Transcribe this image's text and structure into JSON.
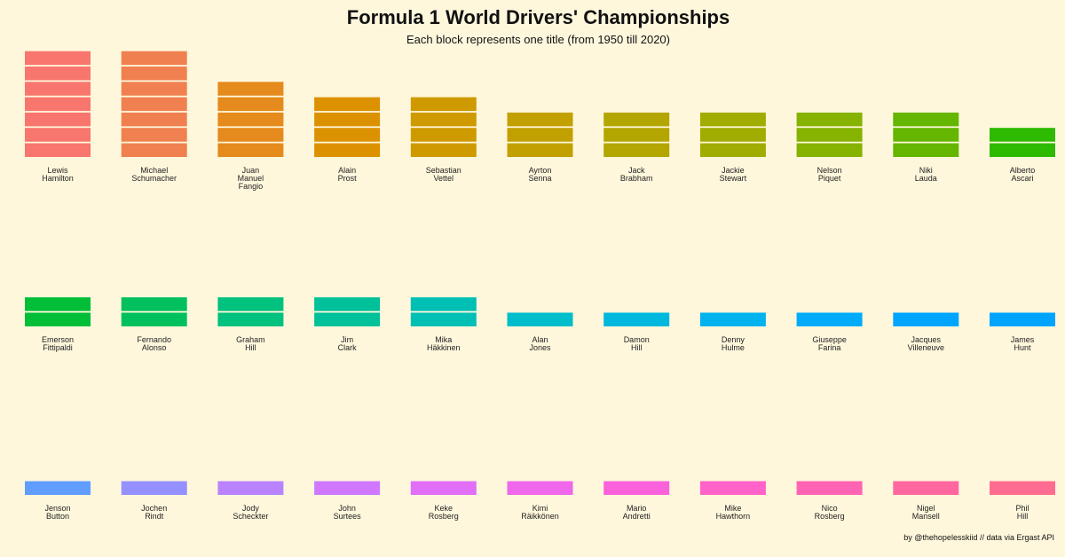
{
  "title": "Formula 1 World Drivers' Championships",
  "subtitle": "Each block represents one title (from 1950 till 2020)",
  "caption": "by @thehopelesskiid // data via Ergast API",
  "chart_data": {
    "type": "bar",
    "unit": "titles",
    "drivers": [
      {
        "name": [
          "Lewis",
          "Hamilton"
        ],
        "titles": 7,
        "color": "#f8766d"
      },
      {
        "name": [
          "Michael",
          "Schumacher"
        ],
        "titles": 7,
        "color": "#f08050"
      },
      {
        "name": [
          "Juan",
          "Manuel",
          "Fangio"
        ],
        "titles": 5,
        "color": "#e58a1c"
      },
      {
        "name": [
          "Alain",
          "Prost"
        ],
        "titles": 4,
        "color": "#dc9200"
      },
      {
        "name": [
          "Sebastian",
          "Vettel"
        ],
        "titles": 4,
        "color": "#cf9a00"
      },
      {
        "name": [
          "Ayrton",
          "Senna"
        ],
        "titles": 3,
        "color": "#c2a000"
      },
      {
        "name": [
          "Jack",
          "Brabham"
        ],
        "titles": 3,
        "color": "#b3a600"
      },
      {
        "name": [
          "Jackie",
          "Stewart"
        ],
        "titles": 3,
        "color": "#a0ac00"
      },
      {
        "name": [
          "Nelson",
          "Piquet"
        ],
        "titles": 3,
        "color": "#86b200"
      },
      {
        "name": [
          "Niki",
          "Lauda"
        ],
        "titles": 3,
        "color": "#64b600"
      },
      {
        "name": [
          "Alberto",
          "Ascari"
        ],
        "titles": 2,
        "color": "#2eba00"
      },
      {
        "name": [
          "Emerson",
          "Fittipaldi"
        ],
        "titles": 2,
        "color": "#00be38"
      },
      {
        "name": [
          "Fernando",
          "Alonso"
        ],
        "titles": 2,
        "color": "#00c05e"
      },
      {
        "name": [
          "Graham",
          "Hill"
        ],
        "titles": 2,
        "color": "#00c17d"
      },
      {
        "name": [
          "Jim",
          "Clark"
        ],
        "titles": 2,
        "color": "#00c19a"
      },
      {
        "name": [
          "Mika",
          "Häkkinen"
        ],
        "titles": 2,
        "color": "#00c0b5"
      },
      {
        "name": [
          "Alan",
          "Jones"
        ],
        "titles": 1,
        "color": "#00bdcc"
      },
      {
        "name": [
          "Damon",
          "Hill"
        ],
        "titles": 1,
        "color": "#00b8dd"
      },
      {
        "name": [
          "Denny",
          "Hulme"
        ],
        "titles": 1,
        "color": "#00b2ee"
      },
      {
        "name": [
          "Giuseppe",
          "Farina"
        ],
        "titles": 1,
        "color": "#00acfa"
      },
      {
        "name": [
          "Jacques",
          "Villeneuve"
        ],
        "titles": 1,
        "color": "#00a5ff"
      },
      {
        "name": [
          "James",
          "Hunt"
        ],
        "titles": 1,
        "color": "#00a4ff"
      },
      {
        "name": [
          "Jenson",
          "Button"
        ],
        "titles": 1,
        "color": "#619cff"
      },
      {
        "name": [
          "Jochen",
          "Rindt"
        ],
        "titles": 1,
        "color": "#9590ff"
      },
      {
        "name": [
          "Jody",
          "Scheckter"
        ],
        "titles": 1,
        "color": "#b983ff"
      },
      {
        "name": [
          "John",
          "Surtees"
        ],
        "titles": 1,
        "color": "#cf78ff"
      },
      {
        "name": [
          "Keke",
          "Rosberg"
        ],
        "titles": 1,
        "color": "#e16ef7"
      },
      {
        "name": [
          "Kimi",
          "Räikkönen"
        ],
        "titles": 1,
        "color": "#ef67eb"
      },
      {
        "name": [
          "Mario",
          "Andretti"
        ],
        "titles": 1,
        "color": "#fa62db"
      },
      {
        "name": [
          "Mike",
          "Hawthorn"
        ],
        "titles": 1,
        "color": "#ff62c8"
      },
      {
        "name": [
          "Nico",
          "Rosberg"
        ],
        "titles": 1,
        "color": "#ff64b4"
      },
      {
        "name": [
          "Nigel",
          "Mansell"
        ],
        "titles": 1,
        "color": "#ff679f"
      },
      {
        "name": [
          "Phil",
          "Hill"
        ],
        "titles": 1,
        "color": "#ff6c91"
      }
    ]
  }
}
